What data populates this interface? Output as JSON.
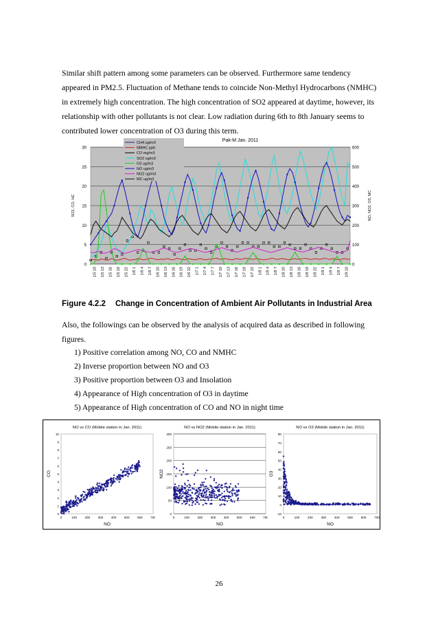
{
  "paragraph1": [
    "Similar shift pattern among some parameters can be observed.   Furthermore same tendency",
    "appeared in PM2.5.   Fluctuation of Methane tends to coincide Non-Methyl Hydrocarbons (NMHC)",
    "in extremely high concentration.   The high concentration of SO2 appeared at daytime, however, its",
    "relationship with other pollutants is not clear.   Low radiation during 6th to 8th January seems to",
    "contributed lower concentration of O3 during this term."
  ],
  "figure_number": "Figure 4.2.2",
  "figure_caption": "Change in Concentration of Ambient Air Pollutants in Industrial Area",
  "paragraph2": [
    "Also, the followings can be observed by the analysis of acquired data as described in following",
    "figures."
  ],
  "observations": [
    "1)  Positive correlation among NO, CO and NMHC",
    "2)  Inverse proportion between NO and O3",
    "3)  Positive proportion between O3 and Insolation",
    "4)  Appearance of High concentration of O3 in daytime",
    "5)  Appearance of High concentration of CO and NO in night time"
  ],
  "page_number": "26",
  "chart_data": [
    {
      "type": "line",
      "title": "Pak-M Jan. 2011",
      "ylabel_left": "SO2, CO, HC",
      "ylabel_right": "NO, NO2, O3, MC",
      "ylim_left": [
        0,
        30
      ],
      "yticks_left": [
        "0",
        "5",
        "10",
        "15",
        "20",
        "25",
        "30"
      ],
      "ylim_right": [
        0,
        600
      ],
      "yticks_right": [
        "0",
        "100",
        "200",
        "300",
        "400",
        "500",
        "600"
      ],
      "x_ticks": [
        "1/5 10",
        "1/5 13",
        "1/5 16",
        "1/5 19",
        "1/5 22",
        "1/6 1",
        "1/6 4",
        "1/6 7",
        "1/6 10",
        "1/6 13",
        "1/6 16",
        "1/6 19",
        "1/6 22",
        "1/7 1",
        "1/7 4",
        "1/7 7",
        "1/7 10",
        "1/7 13",
        "1/7 16",
        "1/7 19",
        "1/7 22",
        "1/8 1",
        "1/8 4",
        "1/8 7",
        "1/8 10",
        "1/8 13",
        "1/8 16",
        "1/8 19",
        "1/8 22",
        "1/9 1",
        "1/9 4",
        "1/9 7",
        "1/9 10"
      ],
      "legend_position": "top-left",
      "series": [
        {
          "name": "CH4 ug/m3",
          "axis": "left",
          "color": "#222288",
          "values": []
        },
        {
          "name": "NMHC ppb",
          "axis": "left",
          "color": "#cc2222",
          "values": [
            1,
            1.2,
            1.1,
            1,
            1.3,
            1.2,
            1,
            1.1,
            1.4,
            1.2,
            1,
            1.1,
            1.3,
            1.5,
            1.2,
            1,
            1.1,
            1.2,
            1.4,
            1.3,
            1.1,
            1.2,
            1.3,
            1.5,
            1.4,
            1.2,
            1.1,
            1.3,
            1.2,
            1.4,
            1.3,
            1.1,
            1.2,
            1.5,
            1.3,
            1.2,
            1.1,
            1.4,
            1.3,
            1.2,
            1.1,
            1.3,
            1.4,
            1.2,
            1.1,
            1.3,
            1.2,
            1.4,
            1.5,
            1.3,
            1.2,
            1.4,
            1.3,
            1.2,
            1.1,
            1.3,
            1.4,
            1.2,
            1.3,
            1.5,
            1.4,
            1.3,
            1.2,
            1.4,
            1.3,
            1.2,
            1.1,
            1.2,
            1.3,
            1.5,
            1.4,
            1.2,
            1.3,
            1.4,
            1.3,
            1.2,
            1.1,
            1.3,
            1.4,
            1.2,
            1.3,
            1.4,
            1.5,
            1.3,
            1.2,
            1.3,
            1.4,
            1.2,
            1.3,
            1.5,
            1.4,
            1.2,
            1.3,
            1.4,
            1.2,
            1.1,
            1.3,
            1.4,
            1.2,
            1.3
          ]
        },
        {
          "name": "CO mg/m3",
          "axis": "left",
          "color": "#000000",
          "values": [
            1,
            1.5,
            2,
            2.5,
            3,
            2,
            1.5,
            2.2,
            3,
            2.8,
            2,
            1.5,
            2.5,
            4,
            6,
            8,
            7,
            5,
            3,
            2.5,
            3.5,
            4,
            5.5,
            4,
            3,
            2.5,
            3,
            3.5,
            4.5,
            5,
            4,
            3,
            2.5,
            3,
            4,
            4.5,
            5,
            4,
            3.5,
            3,
            3.5,
            4.5,
            5,
            4.5,
            4,
            3.5,
            3,
            4,
            4.5,
            5,
            5.5,
            5,
            4.5,
            4,
            3.5,
            4,
            4.5,
            5,
            5.5,
            6,
            5.5,
            5,
            4.5,
            4,
            4.5,
            5,
            5.5,
            6,
            5.5,
            5,
            4.5,
            4,
            4.5,
            5,
            5.5,
            6,
            5,
            4.5,
            4,
            3.5,
            4,
            4.5,
            5,
            4.5,
            4,
            3.5,
            3,
            3.5,
            4,
            4.5,
            5,
            4.5,
            4,
            3.5,
            3,
            2.5,
            3,
            3.5,
            4,
            4.5
          ]
        },
        {
          "name": "SO2 ug/m3",
          "axis": "left",
          "color": "#22dddd",
          "values": [
            2,
            2,
            3,
            4,
            5,
            8,
            10,
            9,
            7,
            5,
            4,
            3,
            3,
            4,
            5,
            6,
            8,
            10,
            12,
            15,
            14,
            12,
            10,
            14,
            13,
            11,
            9,
            8,
            10,
            14,
            18,
            20,
            17,
            14,
            12,
            10,
            12,
            16,
            19,
            22,
            20,
            17,
            14,
            12,
            11,
            13,
            16,
            20,
            24,
            26,
            22,
            18,
            15,
            12,
            11,
            13,
            16,
            20,
            23,
            27,
            25,
            22,
            19,
            16,
            13,
            12,
            14,
            17,
            21,
            25,
            28,
            24,
            20,
            17,
            14,
            13,
            15,
            18,
            22,
            26,
            29,
            27,
            24,
            21,
            18,
            16,
            14,
            16,
            19,
            23,
            26,
            29,
            30,
            27,
            24,
            20,
            17,
            15,
            26,
            25
          ]
        },
        {
          "name": "O3 ug/m3",
          "axis": "left",
          "color": "#22cc22",
          "values": [
            0,
            0,
            1,
            5,
            18,
            19,
            14,
            8,
            3,
            1,
            0,
            0,
            0,
            0,
            0,
            0,
            0,
            0,
            1,
            2,
            4,
            3,
            1,
            0,
            0,
            0,
            0,
            0,
            0,
            0,
            0,
            0,
            0,
            0,
            0,
            1,
            2,
            1,
            0,
            0,
            0,
            0,
            0,
            0,
            0,
            0,
            1,
            3,
            5,
            4,
            2,
            0,
            0,
            0,
            0,
            0,
            0,
            0,
            0,
            0,
            1,
            2,
            3,
            2,
            1,
            0,
            0,
            0,
            0,
            0,
            0,
            0,
            0,
            0,
            0,
            0,
            1,
            2,
            3,
            2,
            1,
            0,
            0,
            0,
            0,
            0,
            0,
            0,
            0,
            0,
            0,
            0,
            0,
            1,
            2,
            1,
            0,
            0,
            0,
            0
          ]
        },
        {
          "name": "NO ug/m3",
          "axis": "right",
          "color": "#1111bb",
          "values": [
            100,
            120,
            140,
            160,
            180,
            200,
            220,
            240,
            260,
            300,
            350,
            400,
            430,
            380,
            320,
            260,
            200,
            160,
            140,
            180,
            240,
            300,
            360,
            410,
            450,
            420,
            360,
            300,
            240,
            200,
            170,
            150,
            180,
            240,
            300,
            360,
            420,
            460,
            430,
            380,
            320,
            260,
            210,
            180,
            160,
            200,
            260,
            330,
            390,
            440,
            470,
            430,
            370,
            310,
            250,
            210,
            180,
            170,
            210,
            270,
            340,
            400,
            450,
            480,
            440,
            380,
            320,
            260,
            210,
            180,
            170,
            200,
            260,
            330,
            400,
            460,
            490,
            470,
            420,
            360,
            300,
            250,
            210,
            190,
            210,
            260,
            320,
            390,
            450,
            500,
            520,
            490,
            440,
            380,
            320,
            270,
            240,
            220,
            250,
            240
          ]
        },
        {
          "name": "NO2 ug/m3",
          "axis": "right",
          "color": "#cc22cc",
          "values": [
            60,
            58,
            62,
            65,
            60,
            55,
            58,
            62,
            70,
            80,
            75,
            68,
            60,
            55,
            58,
            62,
            66,
            70,
            75,
            72,
            68,
            65,
            62,
            60,
            64,
            68,
            72,
            78,
            82,
            78,
            72,
            66,
            62,
            60,
            64,
            68,
            72,
            76,
            80,
            78,
            74,
            70,
            66,
            62,
            60,
            64,
            68,
            72,
            76,
            80,
            84,
            80,
            76,
            72,
            68,
            64,
            62,
            66,
            70,
            74,
            78,
            82,
            86,
            82,
            78,
            74,
            70,
            66,
            62,
            60,
            64,
            68,
            72,
            76,
            80,
            84,
            80,
            76,
            72,
            68,
            64,
            62,
            66,
            70,
            74,
            78,
            82,
            86,
            82,
            78,
            74,
            70,
            66,
            62,
            60,
            58,
            60,
            65,
            70,
            120
          ]
        },
        {
          "name": "MC ug/m3",
          "axis": "right",
          "color": "#111111",
          "values": [
            150,
            200,
            220,
            200,
            180,
            170,
            160,
            150,
            140,
            160,
            170,
            200,
            240,
            220,
            200,
            180,
            160,
            150,
            140,
            130,
            150,
            180,
            210,
            230,
            220,
            200,
            180,
            170,
            160,
            150,
            140,
            160,
            190,
            220,
            240,
            250,
            230,
            210,
            190,
            170,
            160,
            150,
            170,
            200,
            230,
            250,
            260,
            240,
            220,
            200,
            180,
            170,
            160,
            180,
            210,
            240,
            260,
            270,
            250,
            230,
            210,
            190,
            180,
            170,
            190,
            220,
            250,
            270,
            280,
            260,
            240,
            220,
            200,
            190,
            180,
            200,
            230,
            260,
            280,
            290,
            270,
            250,
            230,
            210,
            200,
            190,
            210,
            240,
            270,
            290,
            300,
            280,
            260,
            240,
            220,
            210,
            200,
            220,
            230,
            220
          ]
        }
      ]
    },
    {
      "type": "scatter",
      "title": "NO vs CO (Mobile station in Jan. 2011)",
      "xlabel": "NO",
      "ylabel": "CO",
      "xlim": [
        0,
        700
      ],
      "ylim": [
        0,
        10
      ],
      "xticks": [
        "0",
        "100",
        "200",
        "300",
        "400",
        "500",
        "600",
        "700"
      ],
      "yticks": [
        "0",
        "1",
        "2",
        "3",
        "4",
        "5",
        "6",
        "7",
        "8",
        "9",
        "10"
      ],
      "trend": {
        "type": "linear",
        "slope": 0.0095,
        "intercept": 0.5,
        "x_range": [
          0,
          600
        ],
        "spread": 0.9,
        "count": 380
      }
    },
    {
      "type": "scatter",
      "title": "NO vs NO2 (Mobile station in Jan. 2011)",
      "xlabel": "NO",
      "ylabel": "NO2",
      "xlim": [
        0,
        700
      ],
      "ylim": [
        0,
        300
      ],
      "xticks": [
        "0",
        "100",
        "200",
        "300",
        "400",
        "500",
        "600",
        "700"
      ],
      "yticks": [
        "0",
        "50",
        "100",
        "150",
        "200",
        "250",
        "300"
      ],
      "trend": {
        "type": "cloud",
        "x_range": [
          0,
          500
        ],
        "y_center": 75,
        "spread": 35,
        "count": 380
      }
    },
    {
      "type": "scatter",
      "title": "NO vs O3 (Mobile station in Jan. 2011)",
      "xlabel": "NO",
      "ylabel": "O3",
      "xlim": [
        0,
        700
      ],
      "ylim": [
        -10,
        80
      ],
      "xticks": [
        "0",
        "100",
        "200",
        "300",
        "400",
        "500",
        "600",
        "700"
      ],
      "yticks": [
        "-10",
        "0",
        "10",
        "20",
        "30",
        "40",
        "50",
        "60",
        "70",
        "80"
      ],
      "trend": {
        "type": "decay",
        "amplitude": 55,
        "scale": 30,
        "x_range": [
          0,
          650
        ],
        "count": 380
      }
    }
  ]
}
